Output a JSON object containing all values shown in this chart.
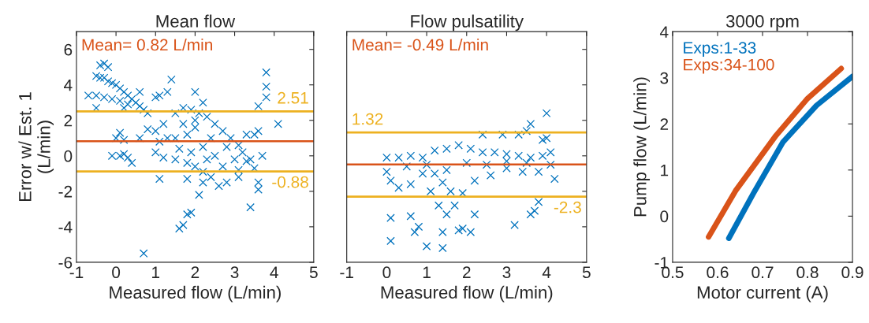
{
  "chart_data": [
    {
      "type": "scatter",
      "title": "Mean flow",
      "xlabel": "Measured flow (L/min)",
      "ylabel": "Error w/ Est. 1\n(L/min)",
      "marker": "cross",
      "xlim": [
        -1,
        5
      ],
      "xticks": [
        -1,
        0,
        1,
        2,
        3,
        4,
        5
      ],
      "ylim": [
        -6,
        7
      ],
      "yticks": [
        -6,
        -4,
        -2,
        0,
        2,
        4,
        6
      ],
      "grid": false,
      "annotations": [
        "Mean= 0.82 L/min"
      ],
      "ref_lines": [
        {
          "axis": "y",
          "value": 0.82,
          "color": "#d95319"
        },
        {
          "axis": "y",
          "value": 2.51,
          "label": "2.51",
          "color": "#edb120"
        },
        {
          "axis": "y",
          "value": -0.88,
          "label": "-0.88",
          "color": "#edb120"
        }
      ],
      "series": [
        {
          "color": "#0072bd",
          "x": [
            -0.5,
            -0.4,
            -0.3,
            -0.2,
            -0.1,
            0,
            0.1,
            0.2,
            0.3,
            0.4,
            0.5,
            0.6,
            0.7,
            0.8,
            -0.4,
            -0.3,
            -0.2,
            -0.7,
            -0.5,
            -0.3,
            -0.1,
            0.1,
            0.3,
            -0.5,
            0.2,
            0.1,
            0.0,
            0.2,
            0.2,
            0.3,
            0.4,
            0.1,
            -0.1,
            0.6,
            0.8,
            1.0,
            1.2,
            1.1,
            1.3,
            1.4,
            1.0,
            0.6,
            2.0,
            2.2,
            1.3,
            1.5,
            1.7,
            1.9,
            2.1,
            2.3,
            2.5,
            2.7,
            2.9,
            3.1,
            3.2,
            3.3,
            3.1,
            2.8,
            2.6,
            2.4,
            2.2,
            2.0,
            1.8,
            1.5,
            1.2,
            1.0,
            1.1,
            1.5,
            1.8,
            2.0,
            2.2,
            2.5,
            2.7,
            1.6,
            1.9,
            2.4,
            2.0,
            1.7,
            2.8,
            3.0,
            2.3,
            0.7,
            1.6,
            1.7,
            1.8,
            1.9,
            2.1,
            2.2,
            1.8,
            3.4,
            3.6,
            3.6,
            3.5,
            3.7,
            3.6,
            3.5,
            3.8,
            3.8,
            3.8,
            3.6,
            4.1,
            3.3,
            3.4,
            3.1,
            1.1
          ],
          "values": [
            4.5,
            4.4,
            4.4,
            4.2,
            4.1,
            4.0,
            3.8,
            3.6,
            3.4,
            3.2,
            3.0,
            2.8,
            2.6,
            2.4,
            5.1,
            5.2,
            5.0,
            3.4,
            3.4,
            3.3,
            3.2,
            3.1,
            2.9,
            2.7,
            2.7,
            1.3,
            1.0,
            0.9,
            0.1,
            -0.1,
            -0.4,
            0.0,
            0.0,
            1.0,
            1.5,
            1.4,
            1.8,
            3.4,
            3.6,
            4.3,
            3.3,
            3.6,
            3.6,
            3.0,
            1.0,
            2.4,
            2.7,
            2.6,
            2.4,
            2.2,
            1.8,
            1.4,
            1.0,
            0.6,
            0.2,
            -0.3,
            -0.8,
            -1.5,
            -1.7,
            -1.2,
            -0.9,
            -0.6,
            -0.4,
            -0.2,
            -0.1,
            0.2,
            0.8,
            1.0,
            1.2,
            1.6,
            0.5,
            0.0,
            -0.6,
            0.4,
            0.2,
            1.0,
            2.0,
            1.8,
            0.5,
            -0.2,
            -0.2,
            -5.5,
            -4.1,
            -3.9,
            -3.3,
            -3.2,
            -2.2,
            -1.5,
            -1.3,
            -2.9,
            -1.9,
            -1.5,
            -0.7,
            0.0,
            1.4,
            1.2,
            3.3,
            3.9,
            4.7,
            2.8,
            1.8,
            1.2,
            -0.2,
            -1.2,
            -1.3
          ]
        }
      ]
    },
    {
      "type": "scatter",
      "title": "Flow pulsatility",
      "xlabel": "Measured flow (L/min)",
      "marker": "cross",
      "tick_labels": "x",
      "xlim": [
        -1,
        5
      ],
      "xticks": [
        -1,
        0,
        1,
        2,
        3,
        4,
        5
      ],
      "ylim": [
        -6,
        7
      ],
      "yticks": [
        -6,
        -4,
        -2,
        0,
        2,
        4,
        6
      ],
      "grid": false,
      "annotations": [
        "Mean= -0.49 L/min"
      ],
      "ref_lines": [
        {
          "axis": "y",
          "value": -0.49,
          "color": "#d95319"
        },
        {
          "axis": "y",
          "value": 1.32,
          "label": "1.32",
          "color": "#edb120"
        },
        {
          "axis": "y",
          "value": -2.3,
          "label": "-2.3",
          "color": "#edb120"
        }
      ],
      "series": [
        {
          "color": "#0072bd",
          "x": [
            0,
            0.3,
            0.6,
            0.9,
            1.2,
            1.5,
            1.8,
            2.1,
            2.4,
            2.7,
            3.0,
            3.3,
            3.6,
            3.9,
            4.1,
            4.1,
            3.8,
            3.4,
            3.0,
            2.6,
            2.2,
            1.9,
            1.7,
            1.5,
            1.3,
            1.1,
            0.9,
            0.6,
            0.3,
            0.1,
            0.0,
            0.5,
            1.0,
            1.5,
            2.0,
            2.5,
            3.0,
            3.5,
            1.4,
            1.6,
            1.2,
            0.1,
            1.0,
            1.4,
            0.1,
            0.6,
            0.7,
            0.8,
            1.8,
            1.9,
            2.1,
            1.4,
            2.2,
            3.2,
            3.6,
            3.7,
            3.8,
            3.5,
            3.6,
            4.0,
            3.9,
            2.4,
            2.9,
            3.3,
            4.0,
            4.2
          ],
          "values": [
            -0.1,
            -0.1,
            0.0,
            -0.1,
            0.3,
            0.4,
            0.6,
            0.4,
            0.2,
            0.2,
            0.1,
            0.0,
            -0.1,
            0.0,
            0.2,
            -0.5,
            -0.9,
            -0.9,
            -0.7,
            -1.1,
            -1.4,
            -2.1,
            -2.8,
            -3.3,
            -2.8,
            -2.0,
            -1.0,
            -1.6,
            -1.8,
            -1.4,
            -0.9,
            -0.6,
            -0.5,
            -0.8,
            -0.4,
            -0.5,
            -0.3,
            -0.4,
            -1.5,
            -2.0,
            -1.0,
            -4.8,
            -5.1,
            -5.2,
            -3.5,
            -3.4,
            -4.3,
            -4.0,
            -4.2,
            -4.1,
            -4.3,
            -4.3,
            -3.3,
            -3.9,
            -3.3,
            -3.1,
            -2.6,
            1.4,
            1.8,
            2.4,
            0.9,
            1.2,
            1.2,
            1.2,
            1.0,
            -1.3
          ]
        }
      ]
    },
    {
      "type": "line",
      "title": "3000 rpm",
      "xlabel": "Motor current (A)",
      "ylabel": "Pump flow (L/min)",
      "legend": "top left",
      "grid": false,
      "xlim": [
        0.5,
        0.9
      ],
      "xticks": [
        0.5,
        0.6,
        0.7,
        0.8,
        0.9
      ],
      "ylim": [
        -1,
        4
      ],
      "yticks": [
        -1,
        0,
        1,
        2,
        3,
        4
      ],
      "series": [
        {
          "name": "Exps:1-33",
          "color": "#0072bd",
          "x": [
            0.625,
            0.68,
            0.745,
            0.82,
            0.9
          ],
          "values": [
            -0.48,
            0.5,
            1.6,
            2.4,
            3.03
          ]
        },
        {
          "name": "Exps:34-100",
          "color": "#d95319",
          "x": [
            0.58,
            0.64,
            0.73,
            0.8,
            0.875
          ],
          "values": [
            -0.45,
            0.55,
            1.75,
            2.55,
            3.2
          ]
        }
      ]
    }
  ]
}
